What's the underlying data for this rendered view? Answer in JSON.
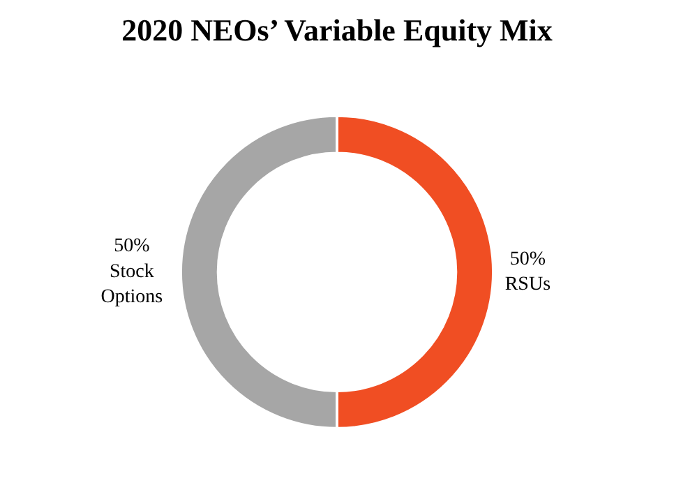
{
  "chart_data": {
    "type": "donut",
    "title": "2020 NEOs’ Variable Equity Mix",
    "categories": [
      "RSUs",
      "Stock Options"
    ],
    "values": [
      50,
      50
    ],
    "colors": [
      "#f04e23",
      "#a6a6a6"
    ],
    "value_labels": [
      "50%",
      "50%"
    ],
    "legend": false
  }
}
